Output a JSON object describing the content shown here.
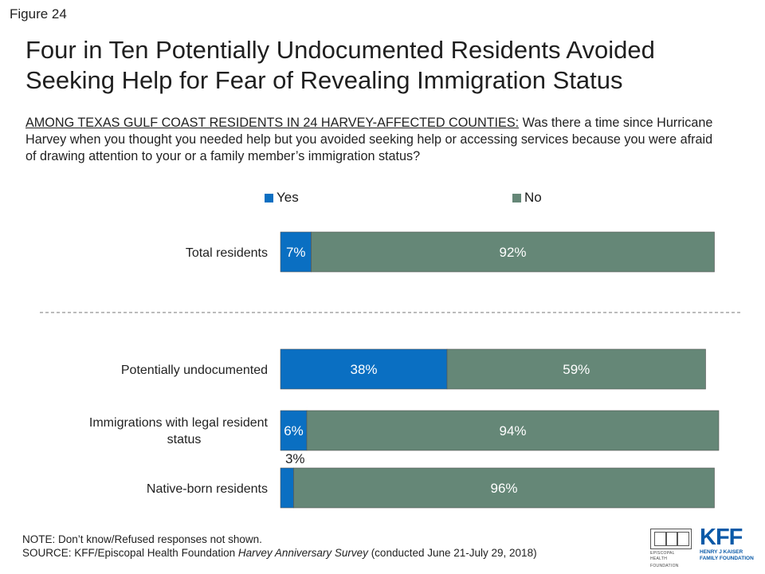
{
  "figure_label": "Figure 24",
  "title": "Four in Ten Potentially Undocumented Residents Avoided Seeking Help for Fear of Revealing Immigration Status",
  "question_lead": "AMONG TEXAS GULF COAST RESIDENTS IN 24 HARVEY-AFFECTED COUNTIES:",
  "question_text": " Was there a time since Hurricane Harvey when you thought you needed help but you avoided seeking help or accessing services because you were afraid of drawing attention to your or a family member’s immigration status?",
  "colors": {
    "yes": "#0a6fc2",
    "no": "#658777",
    "divider": "#777777"
  },
  "chart_data": {
    "type": "bar",
    "orientation": "horizontal",
    "stacked": true,
    "categories": [
      "Total residents",
      "Potentially undocumented",
      "Immigrations with legal resident status",
      "Native-born residents"
    ],
    "series": [
      {
        "name": "Yes",
        "values": [
          7,
          38,
          6,
          3
        ],
        "labels": [
          "7%",
          "38%",
          "6%",
          "3%"
        ]
      },
      {
        "name": "No",
        "values": [
          92,
          59,
          94,
          96
        ],
        "labels": [
          "92%",
          "59%",
          "94%",
          "96%"
        ]
      }
    ],
    "xlim": [
      0,
      100
    ],
    "legend_position": "top",
    "grid": false,
    "divider_after_category": "Total residents"
  },
  "notes": {
    "note": "NOTE: Don’t know/Refused responses not shown.",
    "source_prefix": "SOURCE: KFF/Episcopal Health Foundation ",
    "source_italic": "Harvey Anniversary Survey",
    "source_suffix": " (conducted June 21-July 29, 2018)"
  },
  "logos": {
    "ehf_line1": "EPISCOPAL HEALTH",
    "ehf_line2": "FOUNDATION",
    "kff_mark": "KFF",
    "kff_line1": "HENRY J KAISER",
    "kff_line2": "FAMILY FOUNDATION"
  }
}
